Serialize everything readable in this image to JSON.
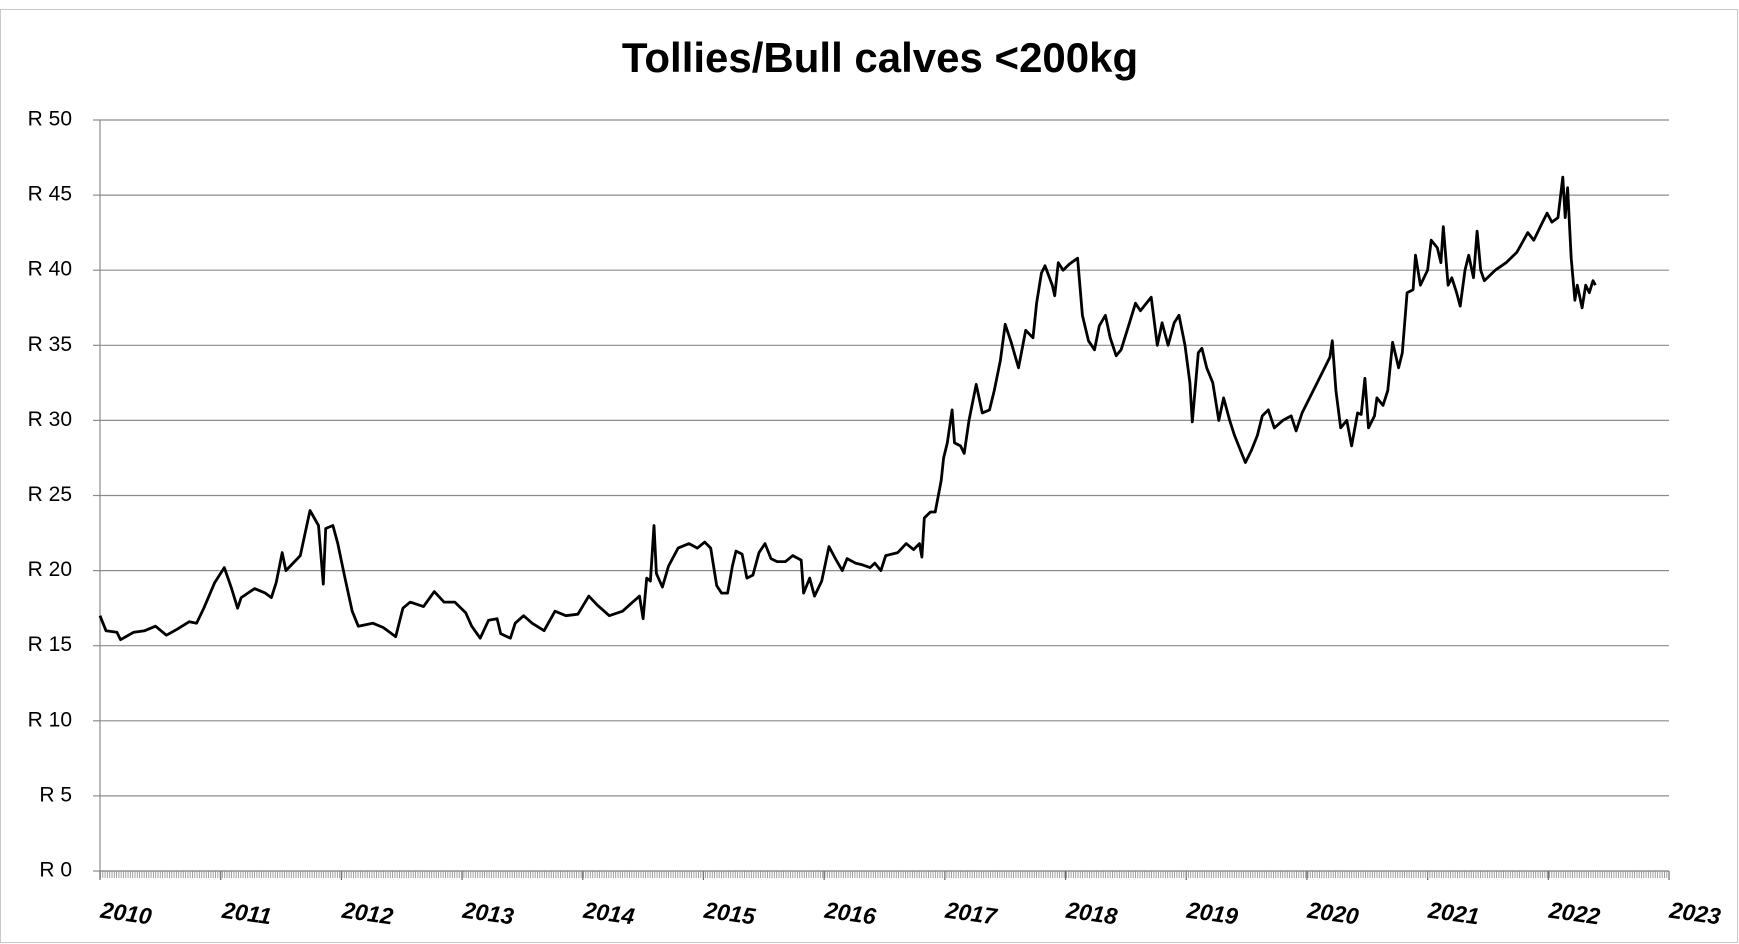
{
  "chart_data": {
    "type": "line",
    "title": "Tollies/Bull calves <200kg",
    "color": "#000000",
    "grid": true,
    "xlim": [
      2010,
      2023
    ],
    "xticks": [
      2010,
      2011,
      2012,
      2013,
      2014,
      2015,
      2016,
      2017,
      2018,
      2019,
      2020,
      2021,
      2022,
      2023
    ],
    "ylim": [
      0,
      50
    ],
    "yticks": [
      {
        "value": 0,
        "label": "R 0"
      },
      {
        "value": 5,
        "label": "R 5"
      },
      {
        "value": 10,
        "label": "R 10"
      },
      {
        "value": 15,
        "label": "R 15"
      },
      {
        "value": 20,
        "label": "R 20"
      },
      {
        "value": 25,
        "label": "R 25"
      },
      {
        "value": 30,
        "label": "R 30"
      },
      {
        "value": 35,
        "label": "R 35"
      },
      {
        "value": 40,
        "label": "R 40"
      },
      {
        "value": 45,
        "label": "R 45"
      },
      {
        "value": 50,
        "label": "R 50"
      }
    ],
    "x": [
      2010.0,
      2010.05,
      2010.14,
      2010.17,
      2010.28,
      2010.37,
      2010.46,
      2010.55,
      2010.64,
      2010.74,
      2010.8,
      2010.86,
      2010.95,
      2011.03,
      2011.09,
      2011.14,
      2011.17,
      2011.28,
      2011.37,
      2011.42,
      2011.46,
      2011.51,
      2011.54,
      2011.6,
      2011.66,
      2011.74,
      2011.81,
      2011.85,
      2011.87,
      2011.93,
      2011.97,
      2012.03,
      2012.09,
      2012.14,
      2012.26,
      2012.35,
      2012.45,
      2012.51,
      2012.57,
      2012.68,
      2012.77,
      2012.85,
      2012.94,
      2013.03,
      2013.08,
      2013.15,
      2013.22,
      2013.29,
      2013.32,
      2013.4,
      2013.44,
      2013.51,
      2013.58,
      2013.68,
      2013.77,
      2013.86,
      2013.96,
      2014.05,
      2014.12,
      2014.22,
      2014.33,
      2014.4,
      2014.47,
      2014.5,
      2014.53,
      2014.56,
      2014.59,
      2014.61,
      2014.66,
      2014.71,
      2014.79,
      2014.88,
      2014.95,
      2015.01,
      2015.06,
      2015.11,
      2015.15,
      2015.2,
      2015.24,
      2015.27,
      2015.32,
      2015.36,
      2015.41,
      2015.46,
      2015.51,
      2015.56,
      2015.61,
      2015.68,
      2015.74,
      2015.81,
      2015.83,
      2015.88,
      2015.92,
      2015.98,
      2016.04,
      2016.1,
      2016.15,
      2016.19,
      2016.26,
      2016.31,
      2016.38,
      2016.42,
      2016.47,
      2016.51,
      2016.61,
      2016.68,
      2016.74,
      2016.79,
      2016.81,
      2016.83,
      2016.88,
      2016.92,
      2016.97,
      2016.99,
      2017.02,
      2017.06,
      2017.08,
      2017.13,
      2017.16,
      2017.2,
      2017.26,
      2017.31,
      2017.37,
      2017.41,
      2017.46,
      2017.5,
      2017.55,
      2017.61,
      2017.67,
      2017.73,
      2017.76,
      2017.8,
      2017.83,
      2017.89,
      2017.91,
      2017.94,
      2017.98,
      2018.03,
      2018.1,
      2018.14,
      2018.19,
      2018.24,
      2018.28,
      2018.33,
      2018.37,
      2018.42,
      2018.46,
      2018.53,
      2018.58,
      2018.62,
      2018.67,
      2018.71,
      2018.76,
      2018.8,
      2018.85,
      2018.9,
      2018.94,
      2018.99,
      2019.03,
      2019.05,
      2019.1,
      2019.13,
      2019.17,
      2019.22,
      2019.27,
      2019.31,
      2019.36,
      2019.4,
      2019.45,
      2019.49,
      2019.54,
      2019.59,
      2019.63,
      2019.68,
      2019.73,
      2019.8,
      2019.87,
      2019.91,
      2019.96,
      2020.19,
      2020.21,
      2020.24,
      2020.28,
      2020.33,
      2020.37,
      2020.42,
      2020.45,
      2020.48,
      2020.51,
      2020.56,
      2020.58,
      2020.63,
      2020.67,
      2020.71,
      2020.76,
      2020.79,
      2020.83,
      2020.88,
      2020.9,
      2020.94,
      2021.0,
      2021.03,
      2021.08,
      2021.11,
      2021.13,
      2021.17,
      2021.2,
      2021.24,
      2021.27,
      2021.31,
      2021.34,
      2021.38,
      2021.41,
      2021.44,
      2021.47,
      2021.56,
      2021.65,
      2021.74,
      2021.83,
      2021.88,
      2021.94,
      2021.99,
      2022.03,
      2022.08,
      2022.12,
      2022.14,
      2022.16,
      2022.19,
      2022.22,
      2022.24,
      2022.28,
      2022.31,
      2022.34,
      2022.37,
      2022.39
    ],
    "values": [
      17.0,
      16.0,
      15.9,
      15.4,
      15.9,
      16.0,
      16.3,
      15.7,
      16.1,
      16.6,
      16.5,
      17.5,
      19.2,
      20.2,
      18.8,
      17.5,
      18.2,
      18.8,
      18.5,
      18.2,
      19.2,
      21.2,
      20.0,
      20.5,
      21.0,
      24.0,
      23.0,
      19.1,
      22.8,
      23.0,
      21.8,
      19.5,
      17.3,
      16.3,
      16.5,
      16.2,
      15.6,
      17.5,
      17.9,
      17.6,
      18.6,
      17.9,
      17.9,
      17.2,
      16.3,
      15.5,
      16.7,
      16.8,
      15.8,
      15.5,
      16.5,
      17.0,
      16.5,
      16.0,
      17.3,
      17.0,
      17.1,
      18.3,
      17.7,
      17.0,
      17.3,
      17.8,
      18.3,
      16.8,
      19.5,
      19.3,
      23.0,
      19.8,
      18.9,
      20.3,
      21.5,
      21.8,
      21.5,
      21.9,
      21.5,
      19.0,
      18.5,
      18.5,
      20.3,
      21.3,
      21.1,
      19.5,
      19.7,
      21.2,
      21.8,
      20.8,
      20.6,
      20.6,
      21.0,
      20.7,
      18.5,
      19.5,
      18.3,
      19.3,
      21.6,
      20.7,
      20.0,
      20.8,
      20.5,
      20.4,
      20.2,
      20.5,
      20.0,
      21.0,
      21.2,
      21.8,
      21.4,
      21.8,
      20.9,
      23.5,
      23.9,
      23.9,
      26.0,
      27.5,
      28.5,
      30.7,
      28.5,
      28.3,
      27.8,
      30.0,
      32.4,
      30.5,
      30.7,
      32.0,
      34.0,
      36.4,
      35.2,
      33.5,
      36.0,
      35.5,
      37.8,
      39.8,
      40.3,
      39.0,
      38.3,
      40.5,
      40.0,
      40.4,
      40.8,
      37.0,
      35.3,
      34.7,
      36.3,
      37.0,
      35.5,
      34.3,
      34.7,
      36.5,
      37.8,
      37.3,
      37.8,
      38.2,
      35.0,
      36.5,
      35.0,
      36.5,
      37.0,
      35.0,
      32.5,
      29.9,
      34.5,
      34.8,
      33.5,
      32.5,
      30.0,
      31.5,
      30.0,
      29.0,
      28.0,
      27.2,
      28.0,
      29.0,
      30.3,
      30.7,
      29.5,
      30.0,
      30.3,
      29.3,
      30.5,
      34.2,
      35.3,
      32.0,
      29.5,
      30.0,
      28.3,
      30.5,
      30.4,
      32.8,
      29.5,
      30.3,
      31.5,
      31.0,
      32.0,
      35.2,
      33.5,
      34.5,
      38.5,
      38.7,
      41.0,
      39.0,
      40.0,
      42.0,
      41.5,
      40.5,
      42.9,
      39.0,
      39.5,
      38.5,
      37.6,
      40.0,
      41.0,
      39.5,
      42.6,
      40.0,
      39.3,
      40.0,
      40.5,
      41.2,
      42.5,
      42.0,
      43.0,
      43.8,
      43.2,
      43.5,
      46.2,
      43.5,
      45.5,
      40.8,
      38.0,
      39.0,
      37.5,
      39.0,
      38.5,
      39.3,
      39.0
    ]
  }
}
